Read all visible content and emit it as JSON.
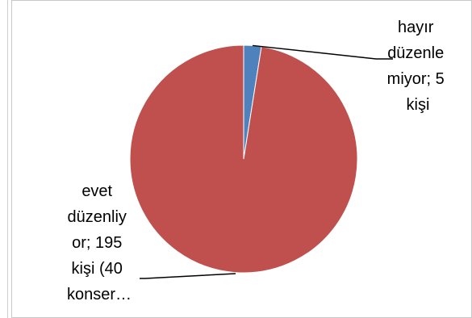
{
  "chart_data": {
    "type": "pie",
    "title": "",
    "slices": [
      {
        "label_lines": [
          "hayır",
          "düzenle",
          "miyor; 5",
          "kişi"
        ],
        "value": 5,
        "color": "#4F81BD"
      },
      {
        "label_lines": [
          "evet",
          "düzenliy",
          "or; 195",
          "kişi (40",
          "konser…"
        ],
        "value": 195,
        "color": "#C0504D"
      }
    ],
    "legend": "none"
  }
}
